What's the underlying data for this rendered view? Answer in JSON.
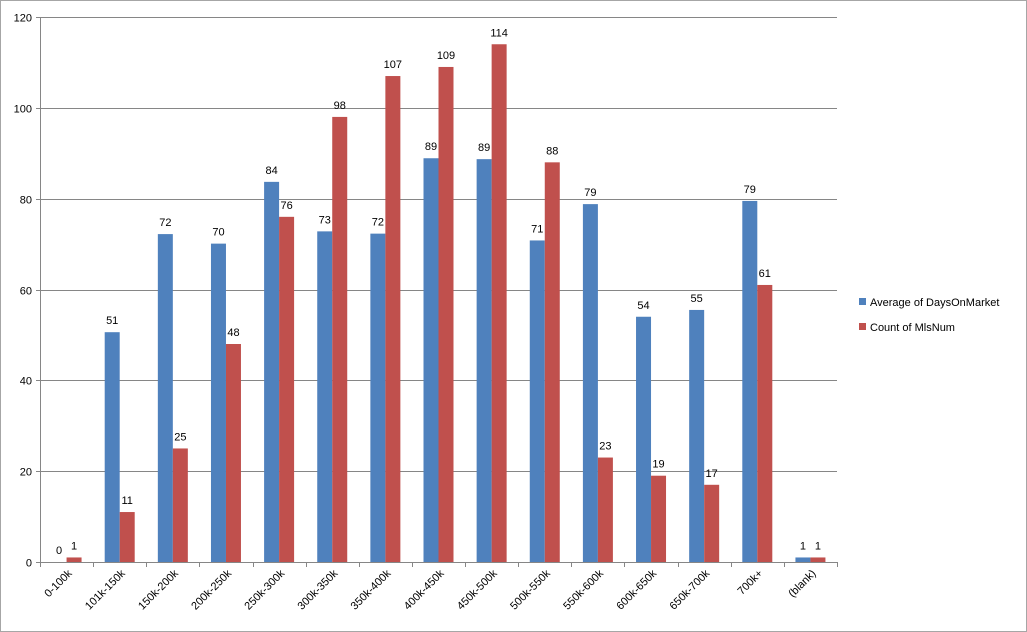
{
  "chart_data": {
    "type": "bar",
    "title": "",
    "xlabel": "",
    "ylabel": "",
    "categories": [
      "0-100k",
      "101k-150k",
      "150k-200k",
      "200k-250k",
      "250k-300k",
      "300k-350k",
      "350k-400k",
      "400k-450k",
      "450k-500k",
      "500k-550k",
      "550k-600k",
      "600k-650k",
      "650k-700k",
      "700k+",
      "(blank)"
    ],
    "series": [
      {
        "name": "Average of DaysOnMarket",
        "color": "#4f81bd",
        "values": [
          0,
          50.6,
          72.2,
          70.1,
          83.7,
          72.8,
          72.3,
          88.9,
          88.7,
          70.8,
          78.8,
          54.0,
          55.5,
          79.5,
          1.0
        ],
        "labels": [
          "0",
          "51",
          "72",
          "70",
          "84",
          "73",
          "72",
          "89",
          "89",
          "71",
          "79",
          "54",
          "55",
          "79",
          "1"
        ]
      },
      {
        "name": "Count of MlsNum",
        "color": "#c0504d",
        "values": [
          1,
          11,
          25,
          48,
          76,
          98,
          107,
          109,
          114,
          88,
          23,
          19,
          17,
          61,
          1
        ],
        "labels": [
          "1",
          "11",
          "25",
          "48",
          "76",
          "98",
          "107",
          "109",
          "114",
          "88",
          "23",
          "19",
          "17",
          "61",
          "1"
        ]
      }
    ],
    "ylim": [
      0,
      120
    ],
    "yticks": [
      0,
      20,
      40,
      60,
      80,
      100,
      120
    ],
    "grid": true,
    "legend": "right"
  }
}
